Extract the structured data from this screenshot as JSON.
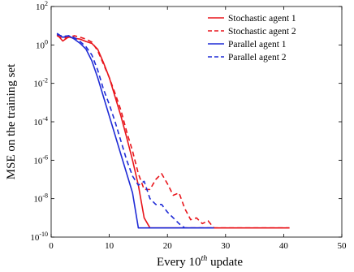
{
  "chart_data": {
    "type": "line",
    "title": "",
    "xlabel_prefix": "Every 10",
    "xlabel_sup": "th",
    "xlabel_suffix": " update",
    "ylabel": "MSE on the training set",
    "xlim": [
      0,
      50
    ],
    "ylim": [
      1e-10,
      100
    ],
    "yscale": "log",
    "grid": false,
    "legend_position": "top-right",
    "x_ticks": [
      "0",
      "10",
      "20",
      "30",
      "40",
      "50"
    ],
    "y_ticks": [
      {
        "base": "10",
        "exp": "-10"
      },
      {
        "base": "10",
        "exp": "-8"
      },
      {
        "base": "10",
        "exp": "-6"
      },
      {
        "base": "10",
        "exp": "-4"
      },
      {
        "base": "10",
        "exp": "-2"
      },
      {
        "base": "10",
        "exp": "0"
      },
      {
        "base": "10",
        "exp": "2"
      }
    ],
    "series": [
      {
        "name": "Stochastic agent 1",
        "color": "#e8151b",
        "dash": "solid",
        "points": [
          [
            1,
            3.5
          ],
          [
            2,
            1.6
          ],
          [
            3,
            2.6
          ],
          [
            4,
            2.2
          ],
          [
            5,
            2.0
          ],
          [
            6,
            1.5
          ],
          [
            7,
            1.2
          ],
          [
            8,
            0.6
          ],
          [
            9,
            0.12
          ],
          [
            10,
            0.02
          ],
          [
            11,
            0.002
          ],
          [
            12,
            0.0002
          ],
          [
            13,
            1.5e-05
          ],
          [
            14,
            1e-06
          ],
          [
            15,
            5e-08
          ],
          [
            16,
            1e-09
          ],
          [
            17,
            3e-10
          ],
          [
            20,
            3e-10
          ],
          [
            25,
            3e-10
          ],
          [
            30,
            3e-10
          ],
          [
            35,
            3e-10
          ],
          [
            41,
            3e-10
          ]
        ]
      },
      {
        "name": "Stochastic agent 2",
        "color": "#e8151b",
        "dash": "dashed",
        "points": [
          [
            1,
            3.0
          ],
          [
            2,
            2.2
          ],
          [
            3,
            2.5
          ],
          [
            4,
            3.0
          ],
          [
            5,
            2.5
          ],
          [
            6,
            2.0
          ],
          [
            7,
            1.4
          ],
          [
            8,
            0.5
          ],
          [
            9,
            0.1
          ],
          [
            10,
            0.02
          ],
          [
            11,
            0.003
          ],
          [
            12,
            0.0004
          ],
          [
            13,
            3e-05
          ],
          [
            14,
            3e-06
          ],
          [
            15,
            2e-07
          ],
          [
            16,
            3e-08
          ],
          [
            17,
            3e-08
          ],
          [
            18,
            1e-07
          ],
          [
            19,
            2e-07
          ],
          [
            20,
            6e-08
          ],
          [
            21,
            1.5e-08
          ],
          [
            22,
            2e-08
          ],
          [
            23,
            3e-09
          ],
          [
            24,
            8e-10
          ],
          [
            25,
            1e-09
          ],
          [
            26,
            5e-10
          ],
          [
            27,
            7e-10
          ],
          [
            28,
            3e-10
          ],
          [
            30,
            3e-10
          ],
          [
            35,
            3e-10
          ],
          [
            41,
            3e-10
          ]
        ]
      },
      {
        "name": "Parallel agent 1",
        "color": "#1f2bd6",
        "dash": "solid",
        "points": [
          [
            1,
            4.0
          ],
          [
            2,
            2.5
          ],
          [
            3,
            3.0
          ],
          [
            4,
            2.0
          ],
          [
            5,
            1.2
          ],
          [
            6,
            0.6
          ],
          [
            7,
            0.15
          ],
          [
            8,
            0.02
          ],
          [
            9,
            0.002
          ],
          [
            10,
            0.0002
          ],
          [
            11,
            2e-05
          ],
          [
            12,
            2e-06
          ],
          [
            13,
            2e-07
          ],
          [
            14,
            2e-08
          ],
          [
            15,
            3e-10
          ],
          [
            17,
            3e-10
          ],
          [
            20,
            3e-10
          ],
          [
            25,
            3e-10
          ],
          [
            28,
            3e-10
          ]
        ]
      },
      {
        "name": "Parallel agent 2",
        "color": "#1f2bd6",
        "dash": "dashed",
        "points": [
          [
            1,
            3.5
          ],
          [
            2,
            2.8
          ],
          [
            3,
            3.0
          ],
          [
            4,
            2.4
          ],
          [
            5,
            1.5
          ],
          [
            6,
            0.8
          ],
          [
            7,
            0.3
          ],
          [
            8,
            0.05
          ],
          [
            9,
            0.005
          ],
          [
            10,
            0.0008
          ],
          [
            11,
            0.0001
          ],
          [
            12,
            1e-05
          ],
          [
            13,
            1e-06
          ],
          [
            14,
            1.5e-07
          ],
          [
            15,
            5e-08
          ],
          [
            16,
            8e-08
          ],
          [
            17,
            1e-08
          ],
          [
            18,
            5e-09
          ],
          [
            19,
            5e-09
          ],
          [
            20,
            2e-09
          ],
          [
            21,
            1e-09
          ],
          [
            22,
            5e-10
          ],
          [
            23,
            3e-10
          ],
          [
            25,
            3e-10
          ],
          [
            28,
            3e-10
          ]
        ]
      }
    ]
  }
}
